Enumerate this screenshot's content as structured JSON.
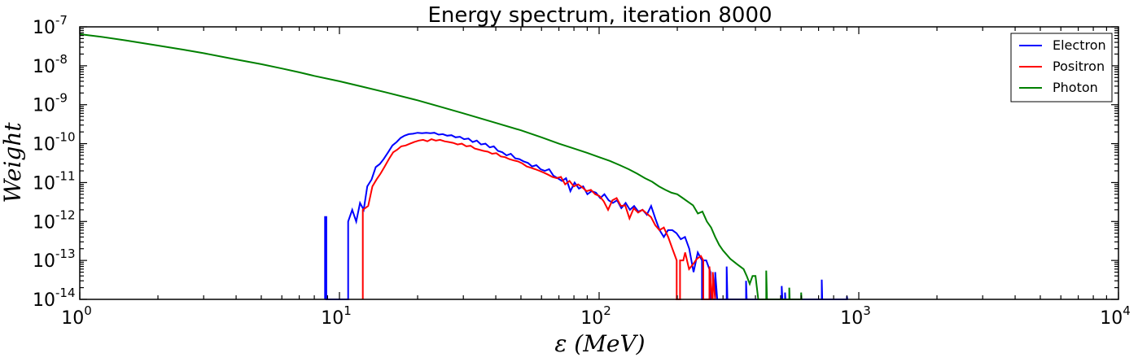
{
  "chart_data": {
    "type": "line",
    "title": "Energy spectrum, iteration 8000",
    "xlabel": "ε (MeV)",
    "ylabel": "Weight",
    "xscale": "log",
    "yscale": "log",
    "xlim": [
      1,
      10000
    ],
    "ylim": [
      1e-14,
      1e-07
    ],
    "x_ticks": [
      {
        "value": 1,
        "base": "10",
        "exp": "0"
      },
      {
        "value": 10,
        "base": "10",
        "exp": "1"
      },
      {
        "value": 100,
        "base": "10",
        "exp": "2"
      },
      {
        "value": 1000,
        "base": "10",
        "exp": "3"
      },
      {
        "value": 10000,
        "base": "10",
        "exp": "4"
      }
    ],
    "y_ticks": [
      {
        "value": 1e-14,
        "base": "10",
        "exp": "-14"
      },
      {
        "value": 1e-13,
        "base": "10",
        "exp": "-13"
      },
      {
        "value": 1e-12,
        "base": "10",
        "exp": "-12"
      },
      {
        "value": 1e-11,
        "base": "10",
        "exp": "-11"
      },
      {
        "value": 1e-10,
        "base": "10",
        "exp": "-10"
      },
      {
        "value": 1e-09,
        "base": "10",
        "exp": "-9"
      },
      {
        "value": 1e-08,
        "base": "10",
        "exp": "-8"
      },
      {
        "value": 1e-07,
        "base": "10",
        "exp": "-7"
      }
    ],
    "grid": false,
    "legend_position": "top-right",
    "series": [
      {
        "name": "Electron",
        "color": "#0000ff",
        "points": [
          [
            8.8,
            1e-14
          ],
          [
            8.8,
            1.3e-12
          ],
          [
            8.9,
            1.3e-12
          ],
          [
            8.9,
            1e-14
          ],
          [
            10.8,
            1e-14
          ],
          [
            10.8,
            1e-12
          ],
          [
            11.2,
            2e-12
          ],
          [
            11.6,
            1e-12
          ],
          [
            12.0,
            3e-12
          ],
          [
            12.4,
            2e-12
          ],
          [
            12.8,
            8e-12
          ],
          [
            13.3,
            1.2e-11
          ],
          [
            13.8,
            2.5e-11
          ],
          [
            14.3,
            3e-11
          ],
          [
            14.8,
            4e-11
          ],
          [
            15.4,
            6e-11
          ],
          [
            16.0,
            9e-11
          ],
          [
            16.6,
            1.1e-10
          ],
          [
            17.2,
            1.4e-10
          ],
          [
            17.8,
            1.6e-10
          ],
          [
            18.5,
            1.75e-10
          ],
          [
            19.2,
            1.8e-10
          ],
          [
            20.0,
            1.9e-10
          ],
          [
            20.8,
            1.85e-10
          ],
          [
            21.6,
            1.9e-10
          ],
          [
            22.4,
            1.85e-10
          ],
          [
            23.2,
            1.9e-10
          ],
          [
            24.1,
            1.7e-10
          ],
          [
            25.0,
            1.75e-10
          ],
          [
            26.0,
            1.6e-10
          ],
          [
            27.0,
            1.65e-10
          ],
          [
            28.0,
            1.45e-10
          ],
          [
            29.1,
            1.5e-10
          ],
          [
            30.2,
            1.3e-10
          ],
          [
            31.4,
            1.35e-10
          ],
          [
            32.6,
            1.1e-10
          ],
          [
            33.8,
            1.2e-10
          ],
          [
            35.1,
            9.5e-11
          ],
          [
            36.5,
            1e-10
          ],
          [
            37.9,
            8e-11
          ],
          [
            39.3,
            8.5e-11
          ],
          [
            40.8,
            6.5e-11
          ],
          [
            42.4,
            6e-11
          ],
          [
            44.0,
            5e-11
          ],
          [
            45.7,
            5.5e-11
          ],
          [
            47.5,
            4.2e-11
          ],
          [
            49.3,
            4e-11
          ],
          [
            51.2,
            3.5e-11
          ],
          [
            53.2,
            3.2e-11
          ],
          [
            55.2,
            2.6e-11
          ],
          [
            57.3,
            2.8e-11
          ],
          [
            59.5,
            2.2e-11
          ],
          [
            61.8,
            2e-11
          ],
          [
            64.2,
            2.2e-11
          ],
          [
            66.7,
            1.5e-11
          ],
          [
            69.2,
            1.3e-11
          ],
          [
            71.9,
            1.1e-11
          ],
          [
            74.6,
            1.3e-11
          ],
          [
            77.5,
            6e-12
          ],
          [
            80.5,
            1e-11
          ],
          [
            83.6,
            7e-12
          ],
          [
            86.8,
            8e-12
          ],
          [
            90.1,
            5e-12
          ],
          [
            93.6,
            6e-12
          ],
          [
            97.2,
            5.5e-12
          ],
          [
            101,
            4e-12
          ],
          [
            104.8,
            5e-12
          ],
          [
            108.8,
            3.5e-12
          ],
          [
            113,
            3e-12
          ],
          [
            117.3,
            3.5e-12
          ],
          [
            121.8,
            2.2e-12
          ],
          [
            126.5,
            3e-12
          ],
          [
            131.4,
            2e-12
          ],
          [
            136.4,
            2.5e-12
          ],
          [
            141.6,
            1.8e-12
          ],
          [
            147,
            2e-12
          ],
          [
            152.7,
            1.5e-12
          ],
          [
            158.6,
            2.5e-12
          ],
          [
            164.6,
            1.2e-12
          ],
          [
            171,
            6e-13
          ],
          [
            177.5,
            4e-13
          ],
          [
            184.3,
            6e-13
          ],
          [
            191.4,
            6e-13
          ],
          [
            198.7,
            5e-13
          ],
          [
            206.3,
            3.5e-13
          ],
          [
            214.2,
            4e-13
          ],
          [
            222.4,
            2e-13
          ],
          [
            231,
            5e-14
          ],
          [
            239.8,
            1.6e-13
          ],
          [
            249,
            1e-13
          ],
          [
            249,
            1e-14
          ],
          [
            251,
            1e-14
          ],
          [
            251,
            1e-13
          ],
          [
            258.6,
            1e-13
          ],
          [
            268.5,
            5e-14
          ],
          [
            268.5,
            1e-14
          ],
          [
            280,
            1e-14
          ],
          [
            280,
            5e-14
          ],
          [
            285,
            1e-14
          ],
          [
            310,
            1e-14
          ],
          [
            310,
            7e-14
          ],
          [
            312,
            1e-14
          ],
          [
            368,
            1e-14
          ],
          [
            368,
            3e-14
          ],
          [
            370,
            1e-14
          ],
          [
            505,
            1e-14
          ],
          [
            505,
            2.2e-14
          ],
          [
            508,
            1e-14
          ],
          [
            520,
            1e-14
          ],
          [
            520,
            1.5e-14
          ],
          [
            522,
            1e-14
          ],
          [
            720,
            1e-14
          ],
          [
            720,
            3.2e-14
          ],
          [
            723,
            1e-14
          ],
          [
            900,
            1e-14
          ],
          [
            900,
            1.2e-14
          ],
          [
            903,
            1e-14
          ]
        ]
      },
      {
        "name": "Positron",
        "color": "#ff0000",
        "points": [
          [
            12.3,
            1e-14
          ],
          [
            12.3,
            2e-12
          ],
          [
            12.9,
            2.5e-12
          ],
          [
            13.4,
            8e-12
          ],
          [
            13.9,
            1.2e-11
          ],
          [
            14.4,
            1.7e-11
          ],
          [
            14.9,
            2.5e-11
          ],
          [
            15.5,
            4e-11
          ],
          [
            16.1,
            6e-11
          ],
          [
            16.7,
            7e-11
          ],
          [
            17.3,
            8.5e-11
          ],
          [
            18.0,
            9e-11
          ],
          [
            18.7,
            1e-10
          ],
          [
            19.4,
            1.1e-10
          ],
          [
            20.2,
            1.2e-10
          ],
          [
            21.0,
            1.25e-10
          ],
          [
            21.8,
            1.15e-10
          ],
          [
            22.6,
            1.3e-10
          ],
          [
            23.5,
            1.2e-10
          ],
          [
            24.4,
            1.25e-10
          ],
          [
            25.4,
            1.15e-10
          ],
          [
            26.4,
            1.1e-10
          ],
          [
            27.4,
            1.05e-10
          ],
          [
            28.5,
            9.5e-11
          ],
          [
            29.6,
            1e-10
          ],
          [
            30.8,
            8.5e-11
          ],
          [
            32.0,
            8.8e-11
          ],
          [
            33.2,
            7.5e-11
          ],
          [
            34.5,
            7e-11
          ],
          [
            35.9,
            6.5e-11
          ],
          [
            37.3,
            6.2e-11
          ],
          [
            38.7,
            5.5e-11
          ],
          [
            40.2,
            5.7e-11
          ],
          [
            41.8,
            4.7e-11
          ],
          [
            43.4,
            4.5e-11
          ],
          [
            45.1,
            4e-11
          ],
          [
            46.9,
            3.7e-11
          ],
          [
            48.7,
            3.5e-11
          ],
          [
            50.6,
            3.1e-11
          ],
          [
            52.6,
            2.6e-11
          ],
          [
            54.6,
            2.4e-11
          ],
          [
            56.7,
            2.2e-11
          ],
          [
            58.9,
            2e-11
          ],
          [
            61.2,
            1.8e-11
          ],
          [
            63.6,
            1.6e-11
          ],
          [
            66.0,
            1.4e-11
          ],
          [
            68.6,
            1.3e-11
          ],
          [
            71.3,
            1.4e-11
          ],
          [
            74.0,
            9e-12
          ],
          [
            76.9,
            1.1e-11
          ],
          [
            79.9,
            8e-12
          ],
          [
            83.0,
            9e-12
          ],
          [
            86.2,
            7.5e-12
          ],
          [
            89.5,
            6e-12
          ],
          [
            93.0,
            6.5e-12
          ],
          [
            96.6,
            5e-12
          ],
          [
            100.3,
            4.5e-12
          ],
          [
            104.2,
            3.3e-12
          ],
          [
            108.3,
            2e-12
          ],
          [
            112.5,
            3.5e-12
          ],
          [
            116.8,
            4e-12
          ],
          [
            121.3,
            2.5e-12
          ],
          [
            126.0,
            2.6e-12
          ],
          [
            130.9,
            1.2e-12
          ],
          [
            136.0,
            2.2e-12
          ],
          [
            141.3,
            1.7e-12
          ],
          [
            146.8,
            2e-12
          ],
          [
            152.5,
            1.6e-12
          ],
          [
            158.4,
            1.3e-12
          ],
          [
            164.5,
            8e-13
          ],
          [
            170.9,
            6e-13
          ],
          [
            177.5,
            7e-13
          ],
          [
            184.4,
            4e-13
          ],
          [
            191.5,
            2e-13
          ],
          [
            198.9,
            1e-13
          ],
          [
            198.9,
            1e-14
          ],
          [
            205,
            1e-14
          ],
          [
            205,
            1e-13
          ],
          [
            211,
            1e-13
          ],
          [
            214.5,
            1.6e-13
          ],
          [
            222,
            6e-14
          ],
          [
            230,
            8e-14
          ],
          [
            238,
            1.1e-13
          ],
          [
            246.5,
            1.3e-13
          ],
          [
            252,
            1e-13
          ],
          [
            252,
            1e-14
          ],
          [
            266,
            1e-14
          ],
          [
            266,
            7e-14
          ],
          [
            272,
            1e-14
          ],
          [
            274,
            1e-14
          ],
          [
            274,
            5e-14
          ],
          [
            280,
            1e-14
          ]
        ]
      },
      {
        "name": "Photon",
        "color": "#008000",
        "points": [
          [
            1.0,
            6.5e-08
          ],
          [
            1.2,
            5.6e-08
          ],
          [
            1.5,
            4.5e-08
          ],
          [
            2.0,
            3.3e-08
          ],
          [
            2.5,
            2.6e-08
          ],
          [
            3.0,
            2.1e-08
          ],
          [
            4.0,
            1.45e-08
          ],
          [
            5.0,
            1.1e-08
          ],
          [
            6.0,
            8.5e-09
          ],
          [
            7.0,
            6.8e-09
          ],
          [
            8.0,
            5.5e-09
          ],
          [
            10,
            4e-09
          ],
          [
            12,
            3e-09
          ],
          [
            15,
            2.1e-09
          ],
          [
            20,
            1.3e-09
          ],
          [
            25,
            8.5e-10
          ],
          [
            30,
            6e-10
          ],
          [
            40,
            3.4e-10
          ],
          [
            50,
            2.2e-10
          ],
          [
            60,
            1.45e-10
          ],
          [
            70,
            1e-10
          ],
          [
            80,
            7.5e-11
          ],
          [
            90,
            5.8e-11
          ],
          [
            100,
            4.5e-11
          ],
          [
            110,
            3.6e-11
          ],
          [
            120,
            2.8e-11
          ],
          [
            130,
            2.2e-11
          ],
          [
            140,
            1.7e-11
          ],
          [
            150,
            1.3e-11
          ],
          [
            160,
            1.05e-11
          ],
          [
            170,
            8e-12
          ],
          [
            180,
            6.5e-12
          ],
          [
            190,
            5.5e-12
          ],
          [
            200,
            5e-12
          ],
          [
            210,
            4e-12
          ],
          [
            220,
            3.2e-12
          ],
          [
            230,
            2.6e-12
          ],
          [
            240,
            1.6e-12
          ],
          [
            250,
            1.8e-12
          ],
          [
            260,
            1e-12
          ],
          [
            270,
            7e-13
          ],
          [
            280,
            4e-13
          ],
          [
            290,
            2.5e-13
          ],
          [
            300,
            1.8e-13
          ],
          [
            320,
            1.1e-13
          ],
          [
            340,
            8e-14
          ],
          [
            360,
            6e-14
          ],
          [
            370,
            4e-14
          ],
          [
            380,
            2.5e-14
          ],
          [
            390,
            4e-14
          ],
          [
            400,
            4e-14
          ],
          [
            405,
            2e-14
          ],
          [
            410,
            1e-14
          ],
          [
            440,
            1e-14
          ],
          [
            440,
            5.5e-14
          ],
          [
            443,
            1e-14
          ],
          [
            540,
            1e-14
          ],
          [
            540,
            2e-14
          ],
          [
            542,
            1e-14
          ],
          [
            600,
            1e-14
          ],
          [
            600,
            1.5e-14
          ],
          [
            602,
            1e-14
          ]
        ]
      }
    ]
  }
}
